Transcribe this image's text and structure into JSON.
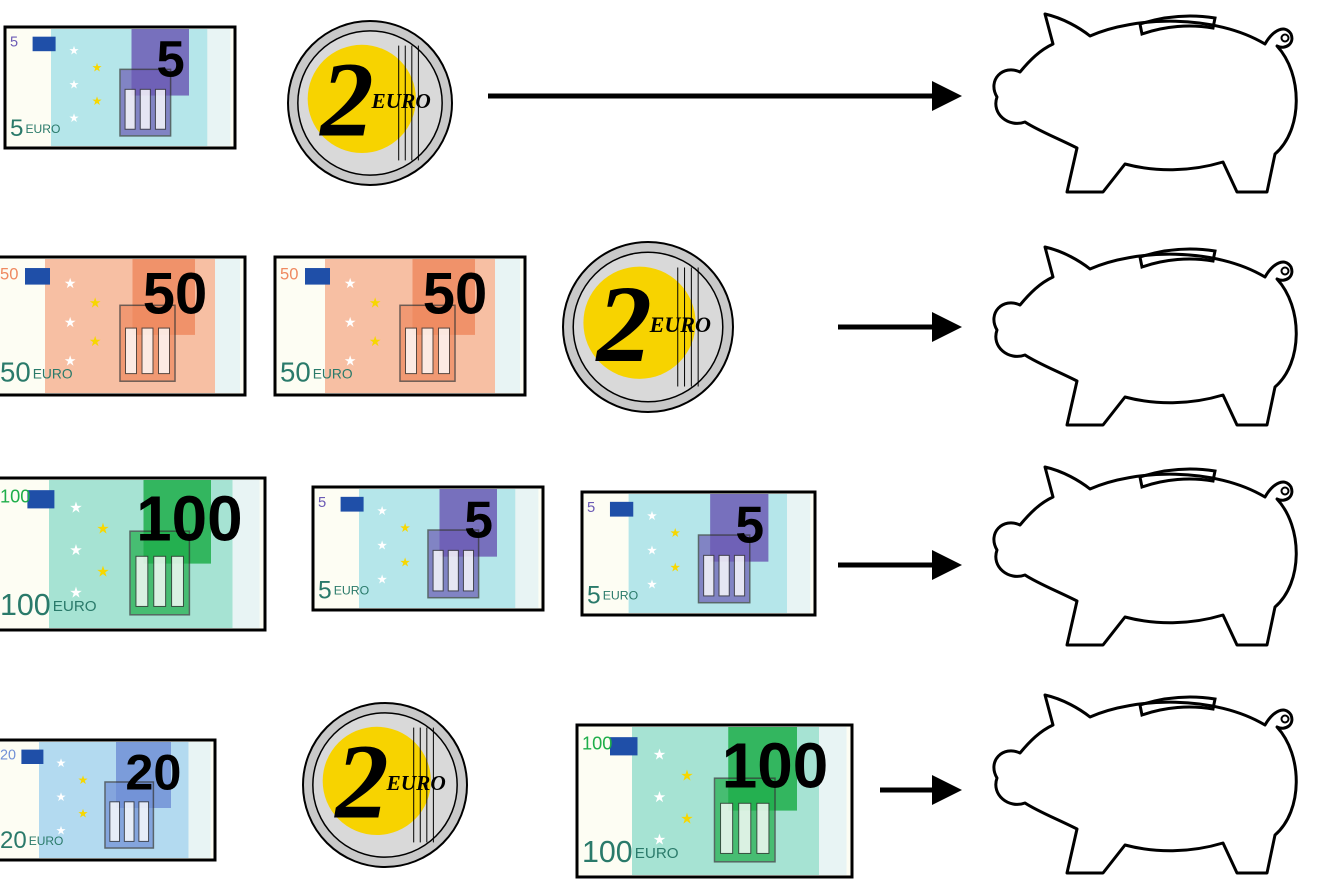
{
  "rows": [
    {
      "items": [
        {
          "type": "note",
          "value": "5",
          "currency": "EURO",
          "color": "#b5e6ea",
          "accent": "#6c5bb5"
        },
        {
          "type": "coin",
          "value": "2",
          "currency": "EURO"
        }
      ]
    },
    {
      "items": [
        {
          "type": "note",
          "value": "50",
          "currency": "EURO",
          "color": "#f7bfa3",
          "accent": "#ef8a60"
        },
        {
          "type": "note",
          "value": "50",
          "currency": "EURO",
          "color": "#f7bfa3",
          "accent": "#ef8a60"
        },
        {
          "type": "coin",
          "value": "2",
          "currency": "EURO"
        }
      ]
    },
    {
      "items": [
        {
          "type": "note",
          "value": "100",
          "currency": "EURO",
          "color": "#a6e3d3",
          "accent": "#1fae4a"
        },
        {
          "type": "note",
          "value": "5",
          "currency": "EURO",
          "color": "#b5e6ea",
          "accent": "#6c5bb5"
        },
        {
          "type": "note",
          "value": "5",
          "currency": "EURO",
          "color": "#b5e6ea",
          "accent": "#6c5bb5"
        }
      ]
    },
    {
      "items": [
        {
          "type": "note",
          "value": "20",
          "currency": "EURO",
          "color": "#b3daf0",
          "accent": "#7190d6"
        },
        {
          "type": "coin",
          "value": "2",
          "currency": "EURO"
        },
        {
          "type": "note",
          "value": "100",
          "currency": "EURO",
          "color": "#a6e3d3",
          "accent": "#1fae4a"
        }
      ]
    }
  ]
}
